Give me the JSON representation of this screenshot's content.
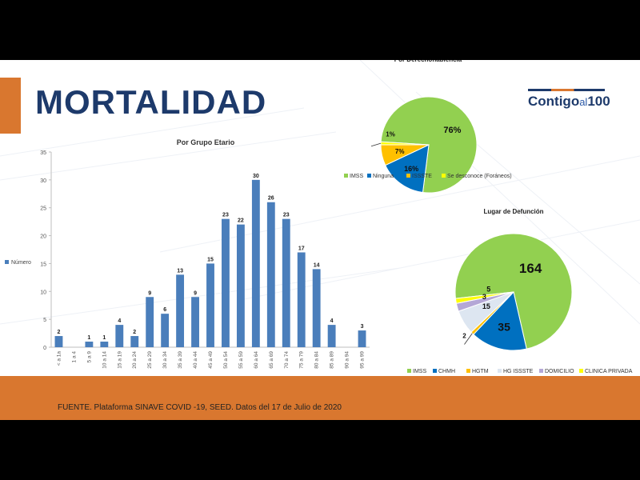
{
  "slide": {
    "title": "MORTALIDAD",
    "logo": {
      "part1": "Contigo",
      "part2": "al",
      "part3": "100"
    },
    "source": "FUENTE. Plataforma SINAVE COVID -19, SEED. Datos del 17 de Julio de 2020",
    "colors": {
      "accent": "#d9772f",
      "title": "#1d3a6b",
      "bar": "#4a7ebb"
    }
  },
  "chart_data": [
    {
      "type": "bar",
      "title": "Por Grupo Etario",
      "categories": [
        "< a 1a",
        "1 a 4",
        "5 a 9",
        "10 a 14",
        "15 a 19",
        "20 a 24",
        "25 a 29",
        "30 a 34",
        "35 a 39",
        "40 a 44",
        "45 a 49",
        "50 a 54",
        "55 a 59",
        "60 a 64",
        "65 a 69",
        "70 a 74",
        "75 a 79",
        "80 a 84",
        "85 a 89",
        "90 a 94",
        "95 a 99"
      ],
      "series": [
        {
          "name": "Número",
          "values": [
            2,
            0,
            1,
            1,
            4,
            2,
            9,
            6,
            13,
            9,
            15,
            23,
            22,
            30,
            26,
            23,
            17,
            14,
            4,
            0,
            3
          ]
        }
      ],
      "data_labels": [
        "2",
        "",
        "1",
        "1",
        "4",
        "2",
        "9",
        "6",
        "13",
        "9",
        "15",
        "23",
        "22",
        "30",
        "26",
        "23",
        "17",
        "14",
        "4",
        "",
        "3"
      ],
      "ylim": [
        0,
        35
      ],
      "yticks": [
        0,
        5,
        10,
        15,
        20,
        25,
        30,
        35
      ],
      "legend": "left",
      "grid": false
    },
    {
      "type": "pie",
      "title": "Por Derechohabiencia",
      "labels": [
        "IMSS",
        "Ninguna",
        "ISSSTE",
        "Se desconoce (Foráneos)"
      ],
      "values": [
        76,
        16,
        7,
        1
      ],
      "value_labels": [
        "76%",
        "16%",
        "7%",
        "1%"
      ],
      "colors": [
        "#92d050",
        "#0070c0",
        "#ffc000",
        "#ffff00"
      ],
      "legend": "bottom"
    },
    {
      "type": "pie",
      "title": "Lugar de Defunción",
      "labels": [
        "IMSS",
        "CHMH",
        "HGTM",
        "HG ISSSTE",
        "DOMICILIO",
        "CLINICA PRIVADA"
      ],
      "values": [
        164,
        35,
        2,
        15,
        5,
        3
      ],
      "value_labels": [
        "164",
        "35",
        "2",
        "15",
        "5",
        "3"
      ],
      "colors": [
        "#92d050",
        "#0070c0",
        "#ffc000",
        "#dde6f1",
        "#b4a7d6",
        "#ffff00"
      ],
      "legend": "bottom"
    }
  ]
}
